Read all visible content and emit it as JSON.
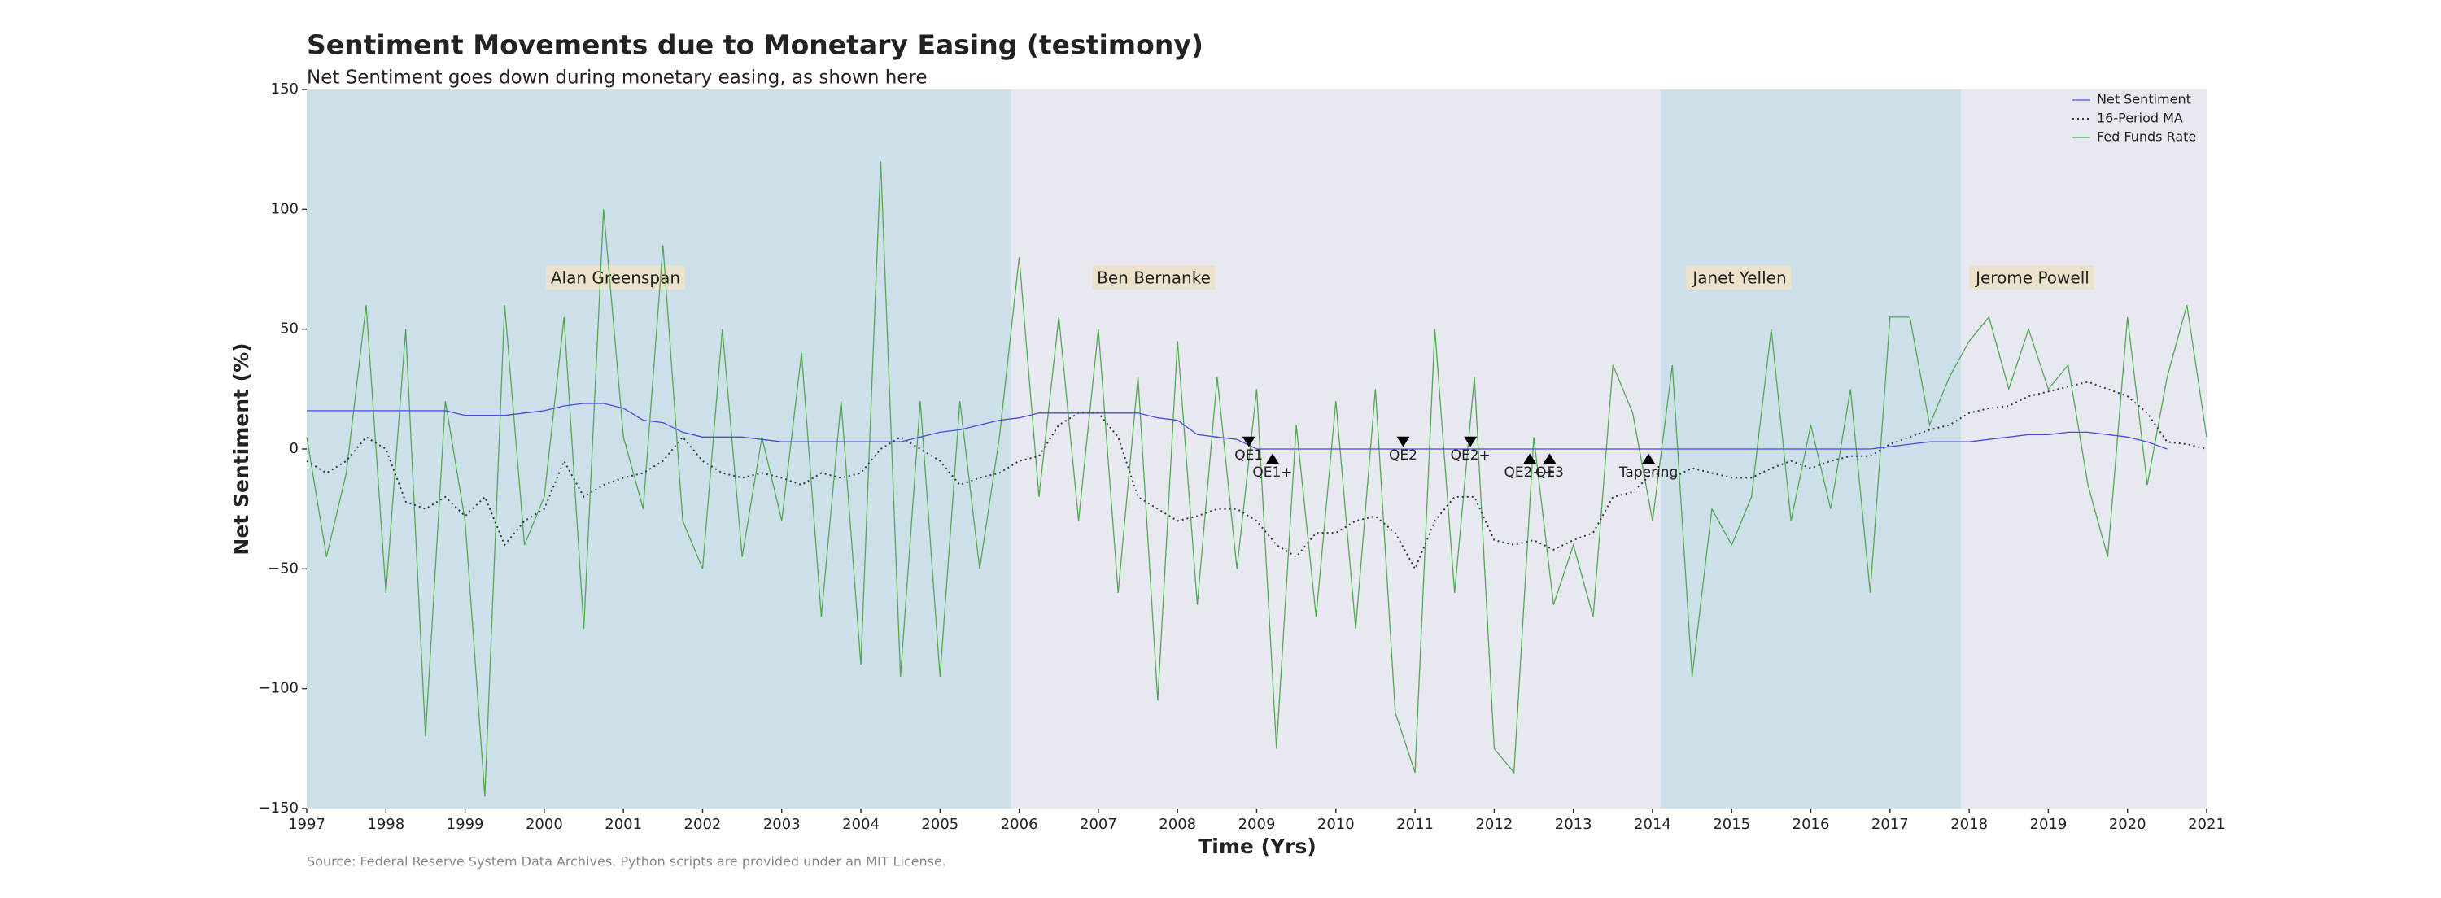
{
  "chart_data": {
    "type": "line",
    "title": "Sentiment Movements due to Monetary Easing (testimony)",
    "subtitle": "Net Sentiment goes down during monetary easing, as shown here",
    "xlabel": "Time (Yrs)",
    "ylabel": "Net Sentiment (%)",
    "source": "Source: Federal Reserve System Data Archives. Python scripts are provided under an MIT License.",
    "xlim": [
      1997,
      2021
    ],
    "ylim": [
      -150,
      150
    ],
    "xticks": [
      1997,
      1998,
      1999,
      2000,
      2001,
      2002,
      2003,
      2004,
      2005,
      2006,
      2007,
      2008,
      2009,
      2010,
      2011,
      2012,
      2013,
      2014,
      2015,
      2016,
      2017,
      2018,
      2019,
      2020,
      2021
    ],
    "yticks": [
      {
        "value": -150,
        "label": "−150"
      },
      {
        "value": -100,
        "label": "−100"
      },
      {
        "value": -50,
        "label": "−50"
      },
      0,
      50,
      100,
      150
    ],
    "legend": "upper right",
    "x": [
      1997,
      1997.25,
      1997.5,
      1997.75,
      1998,
      1998.25,
      1998.5,
      1998.75,
      1999,
      1999.25,
      1999.5,
      1999.75,
      2000,
      2000.25,
      2000.5,
      2000.75,
      2001,
      2001.25,
      2001.5,
      2001.75,
      2002,
      2002.25,
      2002.5,
      2002.75,
      2003,
      2003.25,
      2003.5,
      2003.75,
      2004,
      2004.25,
      2004.5,
      2004.75,
      2005,
      2005.25,
      2005.5,
      2005.75,
      2006,
      2006.25,
      2006.5,
      2006.75,
      2007,
      2007.25,
      2007.5,
      2007.75,
      2008,
      2008.25,
      2008.5,
      2008.75,
      2009,
      2009.25,
      2009.5,
      2009.75,
      2010,
      2010.25,
      2010.5,
      2010.75,
      2011,
      2011.25,
      2011.5,
      2011.75,
      2012,
      2012.25,
      2012.5,
      2012.75,
      2013,
      2013.25,
      2013.5,
      2013.75,
      2014,
      2014.25,
      2014.5,
      2014.75,
      2015,
      2015.25,
      2015.5,
      2015.75,
      2016,
      2016.25,
      2016.5,
      2016.75,
      2017,
      2017.25,
      2017.5,
      2017.75,
      2018,
      2018.25,
      2018.5,
      2018.75,
      2019,
      2019.25,
      2019.5,
      2019.75,
      2020,
      2020.25,
      2020.5,
      2020.75,
      2021
    ],
    "series": [
      {
        "name": "Net Sentiment",
        "color": "#4a4ae0",
        "style": "solid",
        "values": [
          16,
          16,
          16,
          16,
          16,
          16,
          16,
          16,
          14,
          14,
          14,
          15,
          16,
          18,
          19,
          19,
          17,
          12,
          11,
          7,
          5,
          5,
          5,
          4,
          3,
          3,
          3,
          3,
          3,
          3,
          3,
          5,
          7,
          8,
          10,
          12,
          13,
          15,
          15,
          15,
          15,
          15,
          15,
          13,
          12,
          6,
          5,
          4,
          0,
          0,
          0,
          0,
          0,
          0,
          0,
          0,
          0,
          0,
          0,
          0,
          0,
          0,
          0,
          0,
          0,
          0,
          0,
          0,
          0,
          0,
          0,
          0,
          0,
          0,
          0,
          0,
          0,
          0,
          0,
          0,
          1,
          2,
          3,
          3,
          3,
          4,
          5,
          6,
          6,
          7,
          7,
          6,
          5,
          3,
          0,
          null,
          null
        ]
      },
      {
        "name": "16-Period MA",
        "color": "#2f3f4f",
        "style": "dotted",
        "values": [
          -5,
          -10,
          -5,
          5,
          0,
          -22,
          -25,
          -20,
          -28,
          -20,
          -40,
          -30,
          -25,
          -5,
          -20,
          -15,
          -12,
          -10,
          -5,
          5,
          -5,
          -10,
          -12,
          -10,
          -12,
          -15,
          -10,
          -12,
          -10,
          0,
          5,
          0,
          -5,
          -15,
          -12,
          -10,
          -5,
          -3,
          10,
          15,
          15,
          5,
          -20,
          -25,
          -30,
          -28,
          -25,
          -25,
          -30,
          -40,
          -45,
          -35,
          -35,
          -30,
          -28,
          -35,
          -50,
          -30,
          -20,
          -20,
          -38,
          -40,
          -38,
          -42,
          -38,
          -35,
          -20,
          -18,
          -10,
          -12,
          -8,
          -10,
          -12,
          -12,
          -8,
          -5,
          -8,
          -5,
          -3,
          -3,
          2,
          5,
          8,
          10,
          15,
          17,
          18,
          22,
          24,
          26,
          28,
          25,
          22,
          15,
          3,
          2,
          0
        ]
      },
      {
        "name": "Fed Funds Rate",
        "color": "#52a852",
        "style": "solid",
        "values": [
          5,
          -45,
          -10,
          60,
          -60,
          50,
          -120,
          20,
          -30,
          -145,
          60,
          -40,
          -20,
          55,
          -75,
          100,
          5,
          -25,
          85,
          -30,
          -50,
          50,
          -45,
          5,
          -30,
          40,
          -70,
          20,
          -90,
          120,
          -95,
          20,
          -95,
          20,
          -50,
          5,
          80,
          -20,
          55,
          -30,
          50,
          -60,
          30,
          -105,
          45,
          -65,
          30,
          -50,
          25,
          -125,
          10,
          -70,
          20,
          -75,
          25,
          -110,
          -135,
          50,
          -60,
          30,
          -125,
          -135,
          5,
          -65,
          -40,
          -70,
          35,
          15,
          -30,
          35,
          -95,
          -25,
          -40,
          -20,
          50,
          -30,
          10,
          -25,
          25,
          -60,
          55,
          55,
          10,
          30,
          45,
          55,
          25,
          50,
          25,
          35,
          -15,
          -45,
          55,
          -15,
          30,
          60,
          5
        ]
      }
    ],
    "periods": [
      {
        "label": "Alan Greenspan",
        "start": 1997,
        "end": 2005.9,
        "color": "#cde0ea",
        "label_x": 2000.9,
        "label_y": 71
      },
      {
        "label": "Ben Bernanke",
        "start": 2005.9,
        "end": 2014.1,
        "color": "#e8e8f0",
        "label_x": 2007.7,
        "label_y": 71
      },
      {
        "label": "Janet Yellen",
        "start": 2014.1,
        "end": 2017.9,
        "color": "#cde0ea",
        "label_x": 2015.1,
        "label_y": 71
      },
      {
        "label": "Jerome Powell",
        "start": 2017.9,
        "end": 2021,
        "color": "#e8e8f0",
        "label_x": 2018.8,
        "label_y": 71
      }
    ],
    "events": [
      {
        "label": "QE1",
        "x": 2008.9,
        "y": 3,
        "marker": "v"
      },
      {
        "label": "QE1+",
        "x": 2009.2,
        "y": -4,
        "marker": "^"
      },
      {
        "label": "QE2",
        "x": 2010.85,
        "y": 3,
        "marker": "v"
      },
      {
        "label": "QE2+",
        "x": 2011.7,
        "y": 3,
        "marker": "v"
      },
      {
        "label": "QE2++",
        "x": 2012.45,
        "y": -4,
        "marker": "^"
      },
      {
        "label": "QE3",
        "x": 2012.7,
        "y": -4,
        "marker": "^"
      },
      {
        "label": "Tapering",
        "x": 2013.95,
        "y": -4,
        "marker": "^"
      }
    ]
  }
}
